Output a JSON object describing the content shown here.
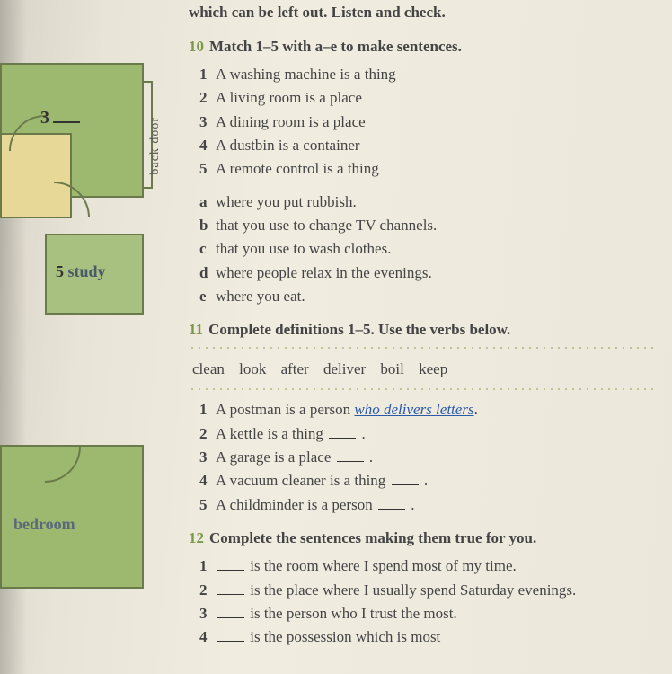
{
  "top_instruction": "which can be left out. Listen and check.",
  "floorplan": {
    "label3_num": "3",
    "backdoor": "back door",
    "study_num": "5",
    "study_label": "study",
    "bedroom_label": "bedroom"
  },
  "ex10": {
    "num": "10",
    "title": "Match 1–5 with a–e to make sentences.",
    "items_num": [
      {
        "n": "1",
        "t": "A washing machine is a thing"
      },
      {
        "n": "2",
        "t": "A living room is a place"
      },
      {
        "n": "3",
        "t": "A dining room is a place"
      },
      {
        "n": "4",
        "t": "A dustbin is a container"
      },
      {
        "n": "5",
        "t": "A remote control is a thing"
      }
    ],
    "items_let": [
      {
        "l": "a",
        "t": "where you put rubbish."
      },
      {
        "l": "b",
        "t": "that you use to change TV channels."
      },
      {
        "l": "c",
        "t": "that you use to wash clothes."
      },
      {
        "l": "d",
        "t": "where people relax in the evenings."
      },
      {
        "l": "e",
        "t": "where you eat."
      }
    ]
  },
  "ex11": {
    "num": "11",
    "title": "Complete definitions 1–5. Use the verbs below.",
    "wordbank": "clean   look after   deliver   boil   keep",
    "items": [
      {
        "n": "1",
        "t": "A postman is a person ",
        "ans": "who delivers letters",
        "end": "."
      },
      {
        "n": "2",
        "t": "A kettle is a thing ",
        "end": " ."
      },
      {
        "n": "3",
        "t": "A garage is a place ",
        "end": " ."
      },
      {
        "n": "4",
        "t": "A vacuum cleaner is a thing ",
        "end": " ."
      },
      {
        "n": "5",
        "t": "A childminder is a person ",
        "end": " ."
      }
    ]
  },
  "ex12": {
    "num": "12",
    "title": "Complete the sentences making them true for you.",
    "items": [
      {
        "n": "1",
        "t": " is the room where I spend most of my time."
      },
      {
        "n": "2",
        "t": " is the place where I usually spend Saturday evenings."
      },
      {
        "n": "3",
        "t": " is the person who I trust the most."
      },
      {
        "n": "4",
        "t": " is the possession which is most"
      }
    ]
  }
}
